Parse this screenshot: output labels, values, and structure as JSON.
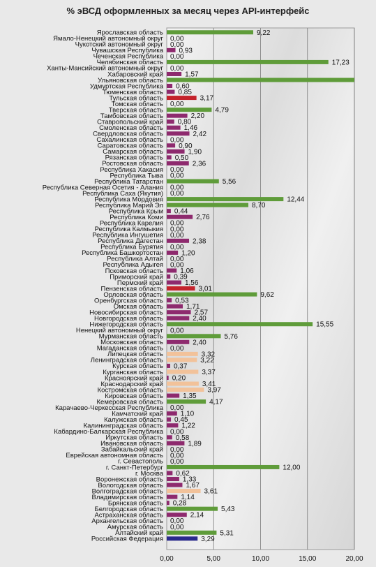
{
  "chart_data": {
    "type": "bar",
    "orientation": "horizontal",
    "title": "% эВСД оформленных за месяц через API-интерфейс",
    "xlabel": "",
    "ylabel": "",
    "xlim": [
      0,
      20
    ],
    "xticks": [
      0,
      5,
      10,
      15,
      20
    ],
    "xtick_labels": [
      "0,00",
      "5,00",
      "10,00",
      "15,00",
      "20,00"
    ],
    "grid": true,
    "colors": {
      "green": "#5f9c3a",
      "purple": "#8e2a6e",
      "red": "#c4222b",
      "navy": "#2a2a8c",
      "peach": "#f2c29a"
    },
    "categories": [
      {
        "name": "Ярославская область",
        "value": 9.22,
        "label": "9,22",
        "color": "green"
      },
      {
        "name": "Ямало-Ненецкий автономный округ",
        "value": 0,
        "label": "0,00",
        "color": "purple"
      },
      {
        "name": "Чукотский автономный округ",
        "value": 0,
        "label": "0,00",
        "color": "purple"
      },
      {
        "name": "Чувашская Республика",
        "value": 0.93,
        "label": "0,93",
        "color": "purple"
      },
      {
        "name": "Чеченская Республика",
        "value": 0,
        "label": "0,00",
        "color": "purple"
      },
      {
        "name": "Челябинская область",
        "value": 17.23,
        "label": "17,23",
        "color": "green"
      },
      {
        "name": "Ханты-Мансийский автономный округ",
        "value": 0,
        "label": "0,00",
        "color": "purple"
      },
      {
        "name": "Хабаровский край",
        "value": 1.57,
        "label": "1,57",
        "color": "purple"
      },
      {
        "name": "Ульяновская область",
        "value": 20,
        "label": "",
        "color": "green"
      },
      {
        "name": "Удмуртская Республика",
        "value": 0.6,
        "label": "0,60",
        "color": "purple"
      },
      {
        "name": "Тюменская область",
        "value": 0.85,
        "label": "0,85",
        "color": "purple"
      },
      {
        "name": "Тульская область",
        "value": 3.17,
        "label": "3,17",
        "color": "red"
      },
      {
        "name": "Томская область",
        "value": 0,
        "label": "0,00",
        "color": "purple"
      },
      {
        "name": "Тверская область",
        "value": 4.79,
        "label": "4,79",
        "color": "green"
      },
      {
        "name": "Тамбовская область",
        "value": 2.2,
        "label": "2,20",
        "color": "purple"
      },
      {
        "name": "Ставропольский край",
        "value": 0.8,
        "label": "0,80",
        "color": "purple"
      },
      {
        "name": "Смоленская область",
        "value": 1.46,
        "label": "1,46",
        "color": "purple"
      },
      {
        "name": "Свердловская область",
        "value": 2.42,
        "label": "2,42",
        "color": "purple"
      },
      {
        "name": "Сахалинская область",
        "value": 0,
        "label": "0,00",
        "color": "purple"
      },
      {
        "name": "Саратовская область",
        "value": 0.9,
        "label": "0,90",
        "color": "purple"
      },
      {
        "name": "Самарская область",
        "value": 1.9,
        "label": "1,90",
        "color": "purple"
      },
      {
        "name": "Рязанская область",
        "value": 0.5,
        "label": "0,50",
        "color": "purple"
      },
      {
        "name": "Ростовская область",
        "value": 2.36,
        "label": "2,36",
        "color": "purple"
      },
      {
        "name": "Республика Хакасия",
        "value": 0,
        "label": "0,00",
        "color": "purple"
      },
      {
        "name": "Республика Тыва",
        "value": 0,
        "label": "0,00",
        "color": "purple"
      },
      {
        "name": "Республика Татарстан",
        "value": 5.56,
        "label": "5,56",
        "color": "green"
      },
      {
        "name": "Республика Северная Осетия - Алания",
        "value": 0,
        "label": "0,00",
        "color": "purple"
      },
      {
        "name": "Республика Саха (Якутия)",
        "value": 0,
        "label": "0,00",
        "color": "purple"
      },
      {
        "name": "Республика Мордовия",
        "value": 12.44,
        "label": "12,44",
        "color": "green"
      },
      {
        "name": "Республика Марий Эл",
        "value": 8.7,
        "label": "8,70",
        "color": "green"
      },
      {
        "name": "Республика Крым",
        "value": 0.44,
        "label": "0,44",
        "color": "purple"
      },
      {
        "name": "Республика Коми",
        "value": 2.76,
        "label": "2,76",
        "color": "purple"
      },
      {
        "name": "Республика Карелия",
        "value": 0,
        "label": "0,00",
        "color": "purple"
      },
      {
        "name": "Республика Калмыкия",
        "value": 0,
        "label": "0,00",
        "color": "purple"
      },
      {
        "name": "Республика Ингушетия",
        "value": 0,
        "label": "0,00",
        "color": "purple"
      },
      {
        "name": "Республика Дагестан",
        "value": 2.38,
        "label": "2,38",
        "color": "purple"
      },
      {
        "name": "Республика Бурятия",
        "value": 0,
        "label": "0,00",
        "color": "purple"
      },
      {
        "name": "Республика Башкортостан",
        "value": 1.2,
        "label": "1,20",
        "color": "purple"
      },
      {
        "name": "Республика Алтай",
        "value": 0,
        "label": "0,00",
        "color": "purple"
      },
      {
        "name": "Республика Адыгея",
        "value": 0,
        "label": "0,00",
        "color": "purple"
      },
      {
        "name": "Псковская область",
        "value": 1.06,
        "label": "1,06",
        "color": "purple"
      },
      {
        "name": "Приморский край",
        "value": 0.39,
        "label": "0,39",
        "color": "purple"
      },
      {
        "name": "Пермский край",
        "value": 1.56,
        "label": "1,56",
        "color": "purple"
      },
      {
        "name": "Пензенская область",
        "value": 3.01,
        "label": "3,01",
        "color": "red"
      },
      {
        "name": "Орловская область",
        "value": 9.62,
        "label": "9,62",
        "color": "green"
      },
      {
        "name": "Оренбургская область",
        "value": 0.53,
        "label": "0,53",
        "color": "purple"
      },
      {
        "name": "Омская область",
        "value": 1.71,
        "label": "1,71",
        "color": "purple"
      },
      {
        "name": "Новосибирская область",
        "value": 2.57,
        "label": "2,57",
        "color": "purple"
      },
      {
        "name": "Новгородская область",
        "value": 2.4,
        "label": "2,40",
        "color": "purple"
      },
      {
        "name": "Нижегородская область",
        "value": 15.55,
        "label": "15,55",
        "color": "green"
      },
      {
        "name": "Ненецкий автономный округ",
        "value": 0,
        "label": "0,00",
        "color": "purple"
      },
      {
        "name": "Мурманская область",
        "value": 5.76,
        "label": "5,76",
        "color": "green"
      },
      {
        "name": "Московская область",
        "value": 2.4,
        "label": "2,40",
        "color": "purple"
      },
      {
        "name": "Магаданская область",
        "value": 0,
        "label": "0,00",
        "color": "purple"
      },
      {
        "name": "Липецкая область",
        "value": 3.32,
        "label": "3,32",
        "color": "peach"
      },
      {
        "name": "Ленинградская область",
        "value": 3.22,
        "label": "3,22",
        "color": "peach"
      },
      {
        "name": "Курская область",
        "value": 0.37,
        "label": "0,37",
        "color": "purple"
      },
      {
        "name": "Курганская область",
        "value": 3.37,
        "label": "3,37",
        "color": "peach"
      },
      {
        "name": "Красноярский край",
        "value": 0.2,
        "label": "0,20",
        "color": "purple"
      },
      {
        "name": "Краснодарский край",
        "value": 3.41,
        "label": "3,41",
        "color": "peach"
      },
      {
        "name": "Костромская область",
        "value": 3.97,
        "label": "3,97",
        "color": "peach"
      },
      {
        "name": "Кировская область",
        "value": 1.35,
        "label": "1,35",
        "color": "purple"
      },
      {
        "name": "Кемеровская область",
        "value": 4.17,
        "label": "4,17",
        "color": "green"
      },
      {
        "name": "Карачаево-Черкесская Республика",
        "value": 0,
        "label": "0,00",
        "color": "purple"
      },
      {
        "name": "Камчатский край",
        "value": 1.1,
        "label": "1,10",
        "color": "purple"
      },
      {
        "name": "Калужская область",
        "value": 0.45,
        "label": "0,45",
        "color": "purple"
      },
      {
        "name": "Калининградская область",
        "value": 1.22,
        "label": "1,22",
        "color": "purple"
      },
      {
        "name": "Кабардино-Балкарская Республика",
        "value": 0,
        "label": "0,00",
        "color": "purple"
      },
      {
        "name": "Иркутская область",
        "value": 0.58,
        "label": "0,58",
        "color": "purple"
      },
      {
        "name": "Ивановская область",
        "value": 1.89,
        "label": "1,89",
        "color": "purple"
      },
      {
        "name": "Забайкальский край",
        "value": 0,
        "label": "0,00",
        "color": "purple"
      },
      {
        "name": "Еврейская автономная область",
        "value": 0,
        "label": "0,00",
        "color": "purple"
      },
      {
        "name": "г. Севастополь",
        "value": 0,
        "label": "0,00",
        "color": "purple"
      },
      {
        "name": "г. Санкт-Петербург",
        "value": 12.0,
        "label": "12,00",
        "color": "green"
      },
      {
        "name": "г. Москва",
        "value": 0.62,
        "label": "0,62",
        "color": "purple"
      },
      {
        "name": "Воронежская область",
        "value": 1.33,
        "label": "1,33",
        "color": "purple"
      },
      {
        "name": "Вологодская область",
        "value": 1.67,
        "label": "1,67",
        "color": "purple"
      },
      {
        "name": "Волгоградская область",
        "value": 3.61,
        "label": "3,61",
        "color": "peach"
      },
      {
        "name": "Владимирская область",
        "value": 1.14,
        "label": "1,14",
        "color": "purple"
      },
      {
        "name": "Брянская область",
        "value": 0.28,
        "label": "0,28",
        "color": "purple"
      },
      {
        "name": "Белгородская область",
        "value": 5.43,
        "label": "5,43",
        "color": "green"
      },
      {
        "name": "Астраханская область",
        "value": 2.14,
        "label": "2,14",
        "color": "purple"
      },
      {
        "name": "Архангельская область",
        "value": 0,
        "label": "0,00",
        "color": "purple"
      },
      {
        "name": "Амурская область",
        "value": 0,
        "label": "0,00",
        "color": "purple"
      },
      {
        "name": "Алтайский край",
        "value": 5.31,
        "label": "5,31",
        "color": "green"
      },
      {
        "name": "Российская Федерация",
        "value": 3.29,
        "label": "3,29",
        "color": "navy"
      }
    ]
  }
}
